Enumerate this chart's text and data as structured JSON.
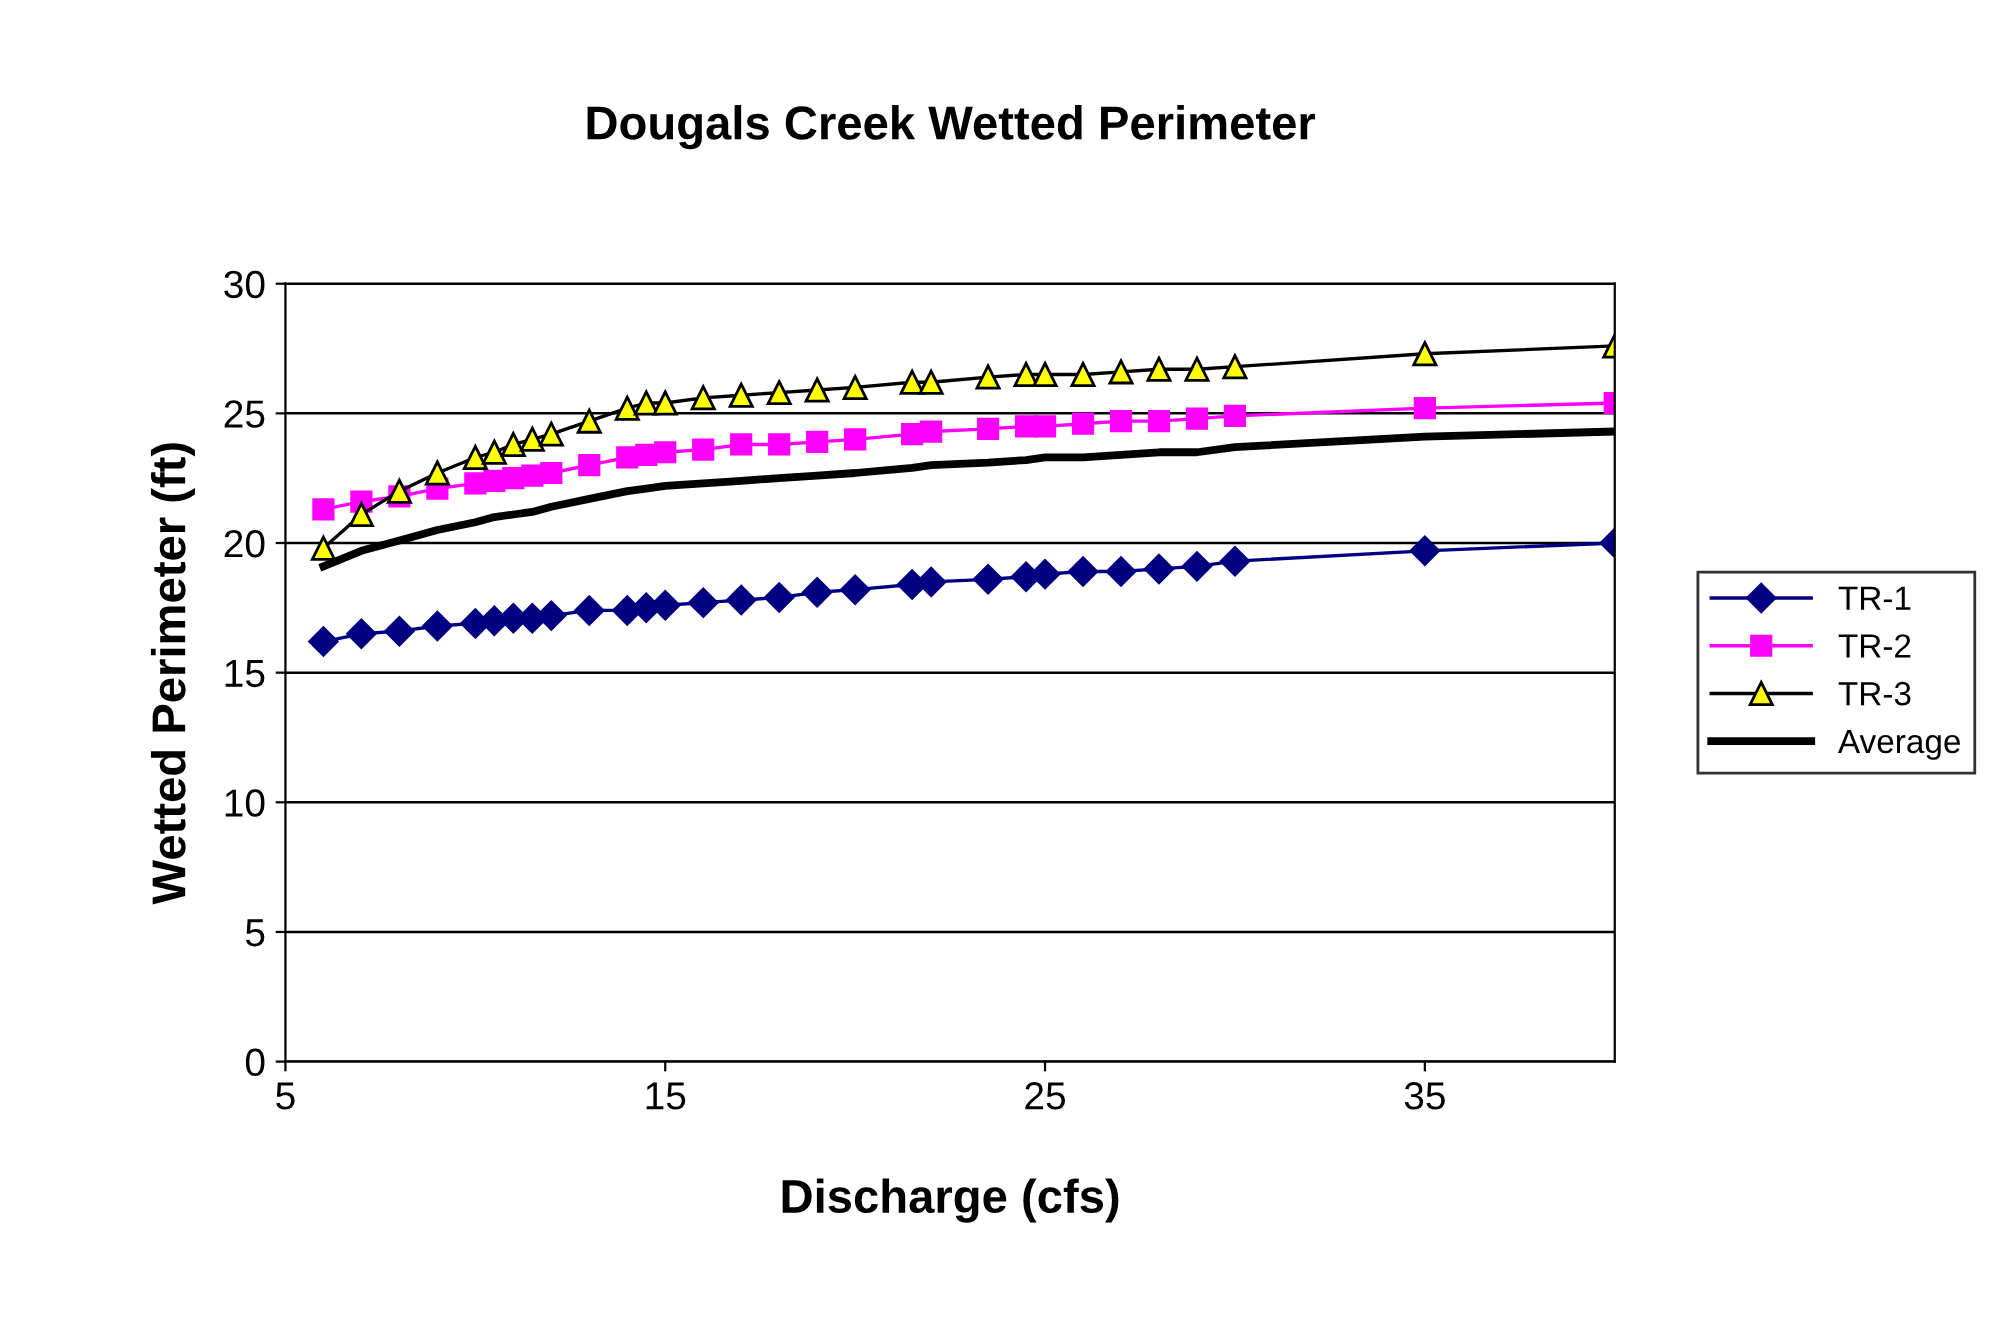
{
  "chart_data": {
    "type": "line",
    "title": "Dougals Creek Wetted Perimeter",
    "xlabel": "Discharge (cfs)",
    "ylabel": "Wetted Perimeter (ft)",
    "x": [
      6,
      7,
      8,
      9,
      10,
      10.5,
      11,
      11.5,
      12,
      13,
      14,
      14.5,
      15,
      16,
      17,
      18,
      19,
      20,
      21.5,
      22,
      23.5,
      24.5,
      25,
      26,
      27,
      28,
      29,
      30,
      35,
      40
    ],
    "series": [
      {
        "name": "TR-1",
        "color": "#000080",
        "marker": "diamond",
        "values": [
          16.2,
          16.5,
          16.6,
          16.8,
          16.9,
          17.0,
          17.1,
          17.1,
          17.2,
          17.4,
          17.4,
          17.5,
          17.6,
          17.7,
          17.8,
          17.9,
          18.1,
          18.2,
          18.4,
          18.5,
          18.6,
          18.7,
          18.8,
          18.9,
          18.9,
          19.0,
          19.1,
          19.3,
          19.7,
          20.0
        ]
      },
      {
        "name": "TR-2",
        "color": "#ff00ff",
        "marker": "square",
        "values": [
          21.3,
          21.6,
          21.8,
          22.1,
          22.3,
          22.4,
          22.5,
          22.6,
          22.7,
          23.0,
          23.3,
          23.4,
          23.5,
          23.6,
          23.8,
          23.8,
          23.9,
          24.0,
          24.2,
          24.3,
          24.4,
          24.5,
          24.5,
          24.6,
          24.7,
          24.7,
          24.8,
          24.9,
          25.2,
          25.4
        ]
      },
      {
        "name": "TR-3",
        "color": "#ffff00",
        "marker": "triangle",
        "values": [
          19.8,
          21.1,
          22.0,
          22.7,
          23.3,
          23.5,
          23.8,
          24.0,
          24.2,
          24.7,
          25.2,
          25.4,
          25.4,
          25.6,
          25.7,
          25.8,
          25.9,
          26.0,
          26.2,
          26.2,
          26.4,
          26.5,
          26.5,
          26.5,
          26.6,
          26.7,
          26.7,
          26.8,
          27.3,
          27.6
        ]
      },
      {
        "name": "Average",
        "color": "#000000",
        "marker": "none",
        "values": [
          19.1,
          19.7,
          20.1,
          20.5,
          20.8,
          21.0,
          21.1,
          21.2,
          21.4,
          21.7,
          22.0,
          22.1,
          22.2,
          22.3,
          22.4,
          22.5,
          22.6,
          22.7,
          22.9,
          23.0,
          23.1,
          23.2,
          23.3,
          23.3,
          23.4,
          23.5,
          23.5,
          23.7,
          24.1,
          24.3
        ]
      }
    ],
    "xlim": [
      5,
      40
    ],
    "xticks": [
      5,
      15,
      25,
      35
    ],
    "ylim": [
      0,
      30
    ],
    "yticks": [
      0,
      5,
      10,
      15,
      20,
      25,
      30
    ],
    "grid": "y",
    "legend": "right",
    "line_style": "solid"
  }
}
